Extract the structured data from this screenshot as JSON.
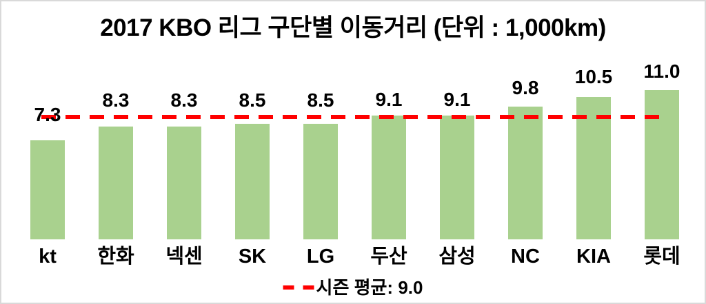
{
  "title": "2017 KBO 리그 구단별 이동거리 (단위 : 1,000km)",
  "legend": {
    "label": "시즌 평균: 9.0"
  },
  "colors": {
    "bar": "#a9d18e",
    "avg_line": "#ff0000",
    "text": "#000000",
    "frame_border": "#d9d9d9",
    "background": "#ffffff"
  },
  "chart_data": {
    "type": "bar",
    "title": "2017 KBO 리그 구단별 이동거리 (단위 : 1,000km)",
    "categories": [
      "kt",
      "한화",
      "넥센",
      "SK",
      "LG",
      "두산",
      "삼성",
      "NC",
      "KIA",
      "롯데"
    ],
    "values": [
      7.3,
      8.3,
      8.3,
      8.5,
      8.5,
      9.1,
      9.1,
      9.8,
      10.5,
      11.0
    ],
    "data_labels": [
      "7.3",
      "8.3",
      "8.3",
      "8.5",
      "8.5",
      "9.1",
      "9.1",
      "9.8",
      "10.5",
      "11.0"
    ],
    "xlabel": "",
    "ylabel": "",
    "ylim": [
      0,
      12
    ],
    "grid": false,
    "axes_visible": false,
    "legend_position": "bottom-center",
    "average_line": {
      "value": 9.0,
      "label": "시즌 평균: 9.0",
      "style": "dashed",
      "color": "#ff0000"
    }
  }
}
